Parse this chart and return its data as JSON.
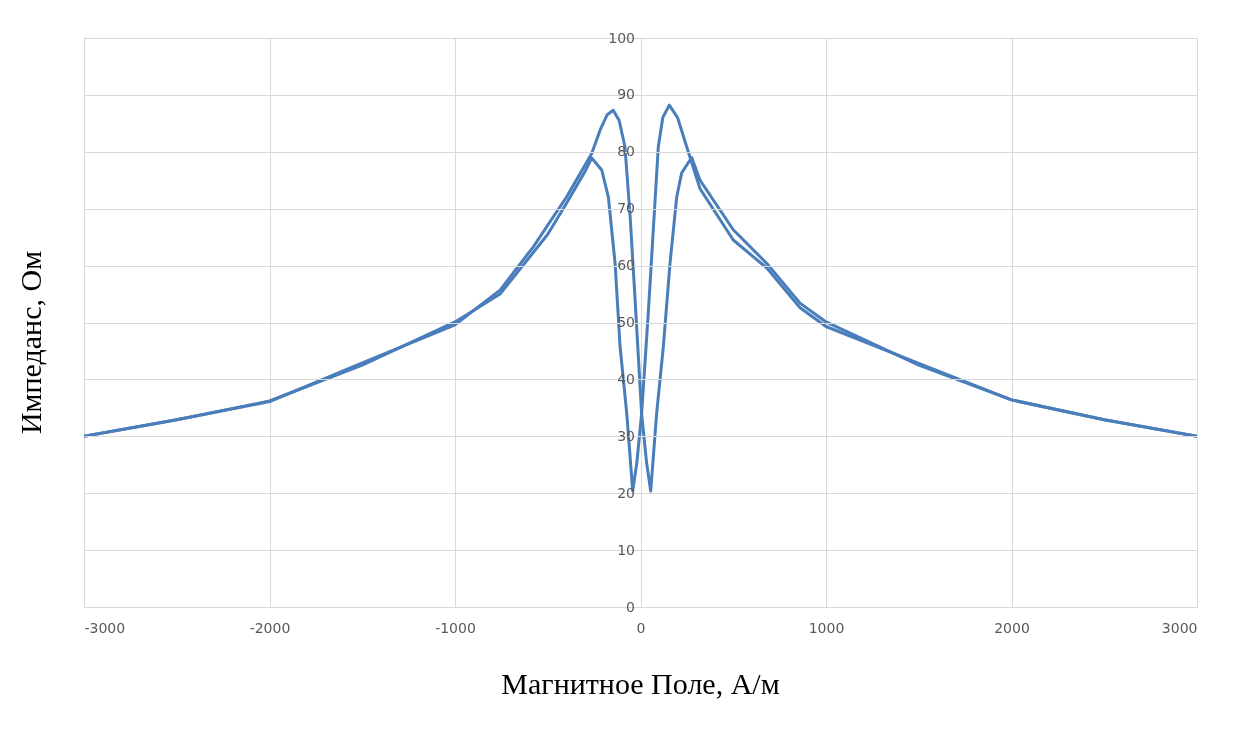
{
  "chart_data": {
    "type": "line",
    "xlabel": "Магнитное Поле, А/м",
    "ylabel": "Импеданс, Ом",
    "xlim": [
      -3000,
      3000
    ],
    "xticks": [
      -3000,
      -2000,
      -1000,
      0,
      1000,
      2000,
      3000
    ],
    "ylim": [
      0,
      100
    ],
    "yticks": [
      0,
      10,
      20,
      30,
      40,
      50,
      60,
      70,
      80,
      90,
      100
    ],
    "grid": true,
    "marker": "none",
    "line_style": "solid",
    "series": [
      {
        "color": "#4a7ebb",
        "x": [
          -3000,
          -2500,
          -2000,
          -1500,
          -1000,
          -757,
          -578,
          -398,
          -263,
          -218,
          -180,
          -147,
          -115,
          -84,
          -57,
          -30,
          6,
          33,
          55,
          87,
          123,
          159,
          195,
          222,
          276,
          321,
          500,
          680,
          860,
          1000,
          1500,
          2000,
          2500,
          3000
        ],
        "values": [
          30,
          32.9,
          36.1,
          42.9,
          49.6,
          55.7,
          63.3,
          72.1,
          79.7,
          83.8,
          86.5,
          87.3,
          85.5,
          80.9,
          69.2,
          54.5,
          34,
          25.3,
          20.4,
          34,
          45.7,
          60.4,
          72,
          76.3,
          79,
          75,
          66.3,
          60.4,
          53.4,
          50.1,
          42.5,
          36.4,
          32.9,
          30
        ]
      },
      {
        "color": "#4a7ebb",
        "x": [
          3000,
          2500,
          2000,
          1500,
          1000,
          860,
          680,
          500,
          321,
          249,
          200,
          155,
          120,
          96,
          69,
          42,
          6,
          -20,
          -42,
          -74,
          -110,
          -137,
          -173,
          -209,
          -263,
          -300,
          -398,
          -500,
          -578,
          -757,
          -1000,
          -1500,
          -2000,
          -2500,
          -3000
        ],
        "values": [
          30,
          32.9,
          36.4,
          42.8,
          49.3,
          52.6,
          59.6,
          64.5,
          73.5,
          80.9,
          86,
          88.2,
          86,
          80.9,
          66.3,
          51.7,
          34,
          25.3,
          20.4,
          34,
          45.7,
          60.4,
          72,
          76.8,
          78.9,
          76.5,
          71,
          65.5,
          62.3,
          55,
          50.1,
          42.5,
          36.2,
          32.9,
          30
        ]
      }
    ]
  }
}
